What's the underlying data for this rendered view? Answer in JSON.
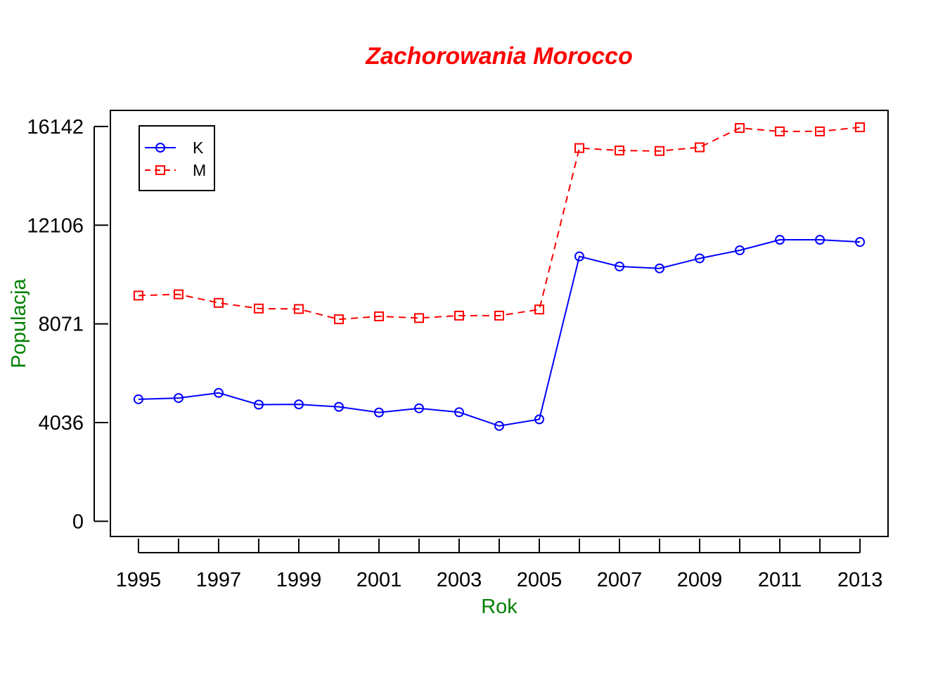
{
  "chart_data": {
    "type": "line",
    "title": "Zachorowania Morocco",
    "xlabel": "Rok",
    "ylabel": "Populacja",
    "x": [
      1995,
      1996,
      1997,
      1998,
      1999,
      2000,
      2001,
      2002,
      2003,
      2004,
      2005,
      2006,
      2007,
      2008,
      2009,
      2010,
      2011,
      2012,
      2013
    ],
    "xlim": [
      1994.3,
      2013.7
    ],
    "ylim": [
      -620,
      16800
    ],
    "x_ticks": [
      1995,
      1996,
      1997,
      1998,
      1999,
      2000,
      2001,
      2002,
      2003,
      2004,
      2005,
      2006,
      2007,
      2008,
      2009,
      2010,
      2011,
      2012,
      2013
    ],
    "x_tick_labels": [
      "1995",
      "",
      "1997",
      "",
      "1999",
      "",
      "2001",
      "",
      "2003",
      "",
      "2005",
      "",
      "2007",
      "",
      "2009",
      "",
      "2011",
      "",
      "2013"
    ],
    "y_ticks": [
      0,
      4036,
      8071,
      12106,
      16142
    ],
    "y_tick_labels": [
      "0",
      "4036",
      "8071",
      "12106",
      "16142"
    ],
    "grid": false,
    "legend_position": "top-left",
    "series": [
      {
        "name": "K",
        "color": "#0000ff",
        "line_style": "solid",
        "marker": "circle",
        "values": [
          4990,
          5040,
          5250,
          4770,
          4780,
          4680,
          4450,
          4620,
          4460,
          3900,
          4170,
          10830,
          10420,
          10340,
          10750,
          11080,
          11510,
          11510,
          11420
        ]
      },
      {
        "name": "M",
        "color": "#ff0000",
        "line_style": "dashed",
        "marker": "square",
        "values": [
          9230,
          9280,
          8930,
          8700,
          8680,
          8260,
          8380,
          8310,
          8410,
          8410,
          8660,
          15260,
          15160,
          15140,
          15290,
          16080,
          15940,
          15940,
          16110
        ]
      }
    ]
  }
}
